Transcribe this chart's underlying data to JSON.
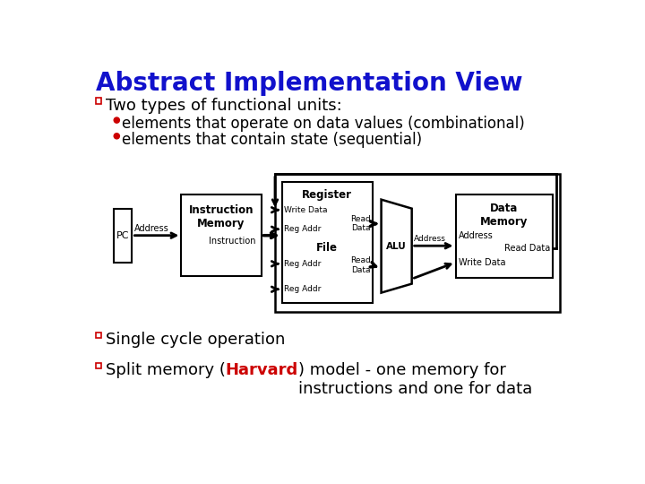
{
  "title": "Abstract Implementation View",
  "title_color": "#1111CC",
  "title_fontsize": 20,
  "bg_color": "#FFFFFF",
  "bullet_color": "#CC0000",
  "bullet1": "elements that operate on data values (combinational)",
  "bullet2": "elements that contain state (sequential)",
  "main_bullet": "Two types of functional units:",
  "main_bullet2": "Single cycle operation",
  "main_bullet3_part1": "Split memory (",
  "main_bullet3_harvard": "Harvard",
  "main_bullet3_part2": ") model - one memory for\ninstructions and one for data",
  "harvard_color": "#CC0000",
  "text_fontsize": 13,
  "sub_fontsize": 12
}
